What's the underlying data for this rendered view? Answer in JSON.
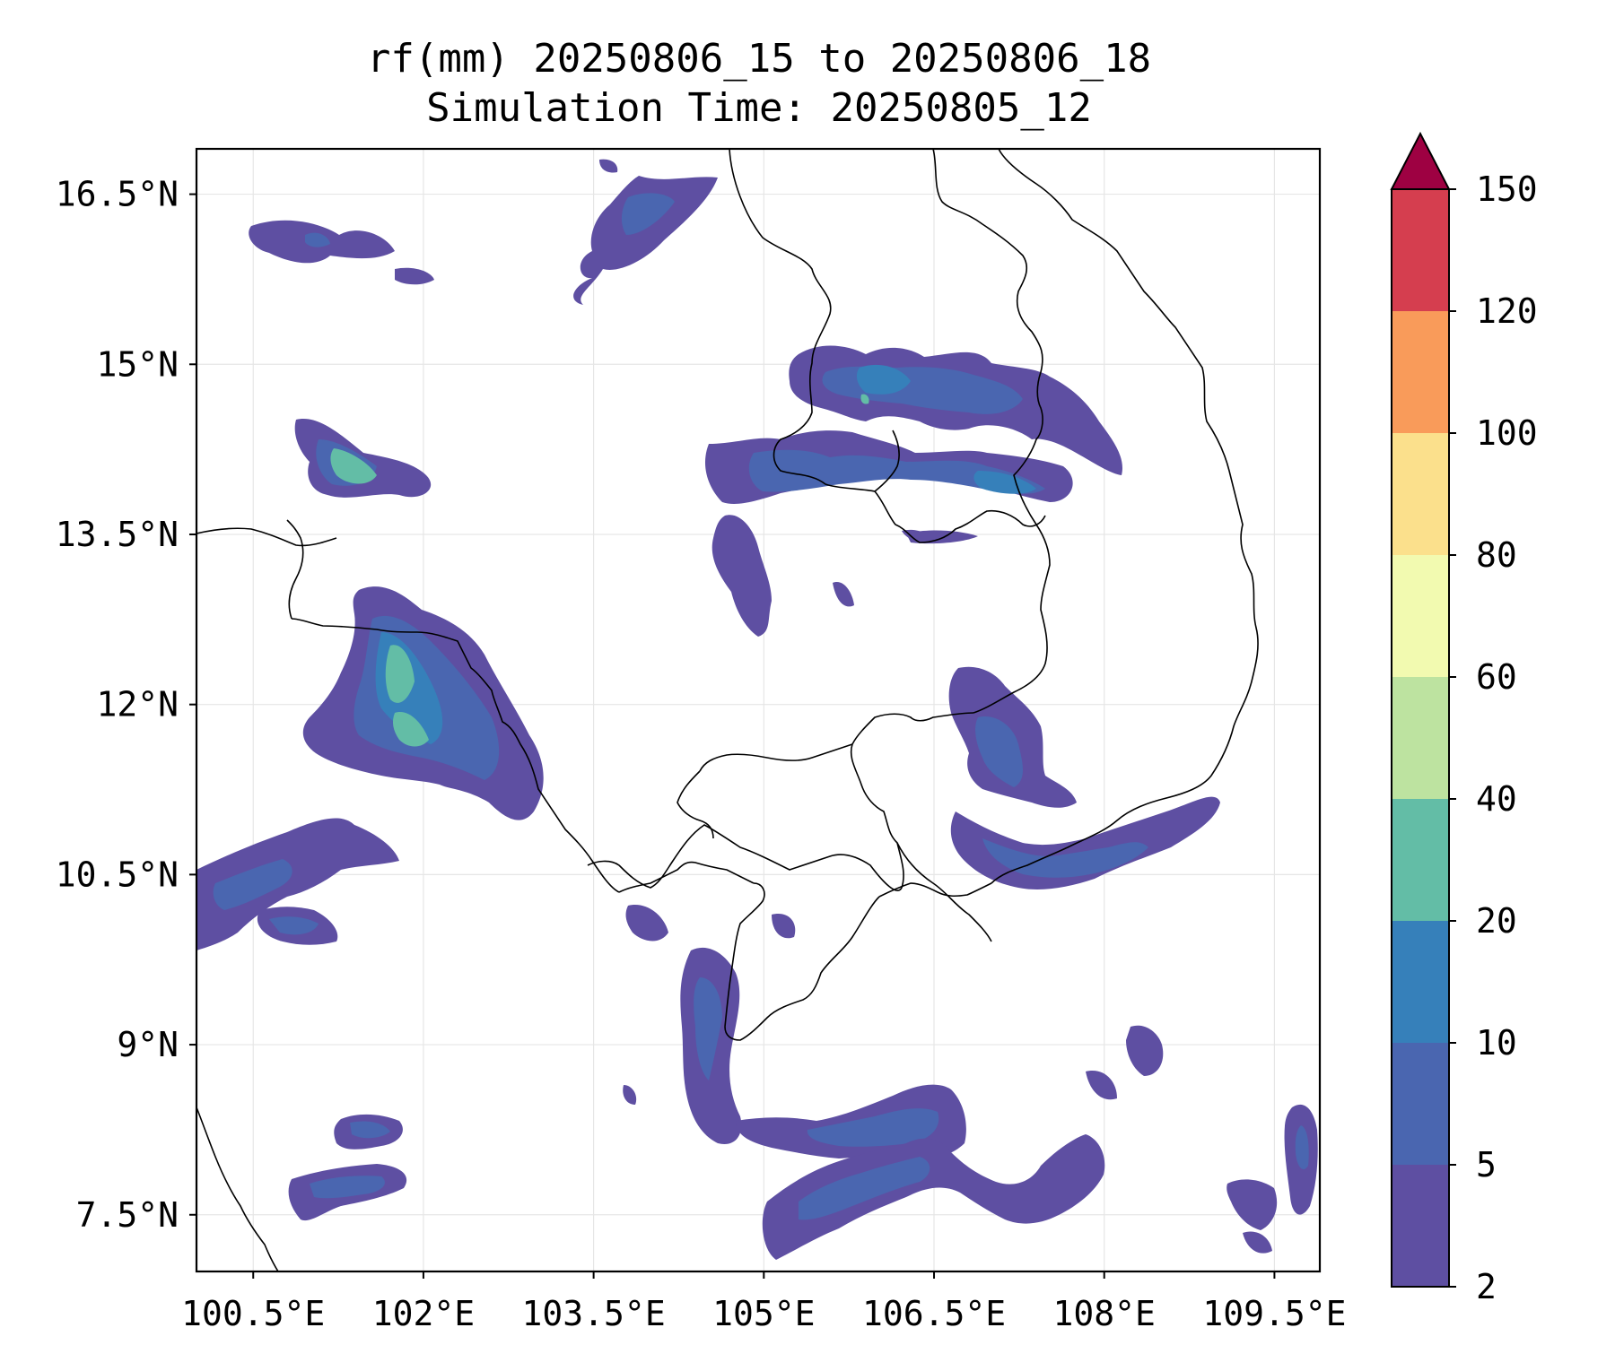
{
  "title": {
    "line1": "rf(mm) 20250806_15 to 20250806_18",
    "line2": "Simulation Time: 20250805_12"
  },
  "map": {
    "extent": {
      "lon_min": 100.0,
      "lon_max": 109.9,
      "lat_min": 7.0,
      "lat_max": 16.9
    },
    "lon_ticks": [
      {
        "value": 100.5,
        "label": "100.5°E"
      },
      {
        "value": 102.0,
        "label": "102°E"
      },
      {
        "value": 103.5,
        "label": "103.5°E"
      },
      {
        "value": 105.0,
        "label": "105°E"
      },
      {
        "value": 106.5,
        "label": "106.5°E"
      },
      {
        "value": 108.0,
        "label": "108°E"
      },
      {
        "value": 109.5,
        "label": "109.5°E"
      }
    ],
    "lat_ticks": [
      {
        "value": 16.5,
        "label": "16.5°N"
      },
      {
        "value": 15.0,
        "label": "15°N"
      },
      {
        "value": 13.5,
        "label": "13.5°N"
      },
      {
        "value": 12.0,
        "label": "12°N"
      },
      {
        "value": 10.5,
        "label": "10.5°N"
      },
      {
        "value": 9.0,
        "label": "9°N"
      },
      {
        "value": 7.5,
        "label": "7.5°N"
      }
    ],
    "grid": true
  },
  "colorbar": {
    "levels": [
      {
        "label": "2",
        "color": "#5e4fa2"
      },
      {
        "label": "5",
        "color": "#4a66b0"
      },
      {
        "label": "10",
        "color": "#3680ba"
      },
      {
        "label": "20",
        "color": "#63bda6"
      },
      {
        "label": "40",
        "color": "#bde3a0"
      },
      {
        "label": "60",
        "color": "#f2fab0"
      },
      {
        "label": "80",
        "color": "#fbe08c"
      },
      {
        "label": "100",
        "color": "#f99b5a"
      },
      {
        "label": "120",
        "color": "#d53e4f"
      },
      {
        "label": "150",
        "color": "#9e0142"
      }
    ],
    "extend": "max"
  },
  "chart_data": {
    "type": "heatmap",
    "variable": "rf(mm)",
    "title": "rf(mm) 20250806_15 to 20250806_18",
    "subtitle": "Simulation Time: 20250805_12",
    "xlim": [
      100.0,
      109.9
    ],
    "ylim": [
      7.0,
      16.9
    ],
    "colorbar_bounds": [
      2,
      5,
      10,
      20,
      40,
      60,
      80,
      100,
      120,
      150
    ],
    "rain_areas": [
      {
        "lon": [
          100.5,
          101.8,
          101.8,
          100.5
        ],
        "lat": [
          16.6,
          16.6,
          15.8,
          15.8
        ],
        "level": "5"
      },
      {
        "lon": [
          103.5,
          105.0,
          104.8,
          103.4
        ],
        "lat": [
          16.7,
          16.7,
          15.6,
          15.6
        ],
        "level": "10"
      },
      {
        "lon": [
          101.0,
          102.5,
          102.4,
          101.0
        ],
        "lat": [
          14.7,
          14.2,
          13.9,
          14.1
        ],
        "level": "20"
      },
      {
        "lon": [
          101.2,
          103.3,
          103.0,
          101.0
        ],
        "lat": [
          13.2,
          11.6,
          11.2,
          12.0
        ],
        "level": "40"
      },
      {
        "lon": [
          105.3,
          108.3,
          108.2,
          105.4
        ],
        "lat": [
          15.2,
          15.0,
          13.8,
          14.2
        ],
        "level": "20"
      },
      {
        "lon": [
          104.4,
          105.4,
          105.3,
          104.6
        ],
        "lat": [
          14.4,
          14.2,
          13.7,
          13.8
        ],
        "level": "10"
      },
      {
        "lon": [
          107.0,
          109.0,
          108.7,
          107.0
        ],
        "lat": [
          12.5,
          10.9,
          10.2,
          10.3
        ],
        "level": "10"
      },
      {
        "lon": [
          100.0,
          101.8,
          101.6,
          100.0
        ],
        "lat": [
          11.3,
          11.3,
          10.2,
          10.2
        ],
        "level": "5"
      },
      {
        "lon": [
          104.5,
          107.7,
          107.5,
          104.6
        ],
        "lat": [
          10.4,
          9.6,
          7.3,
          7.3
        ],
        "level": "10"
      },
      {
        "lon": [
          100.8,
          101.8,
          101.8,
          100.8
        ],
        "lat": [
          8.4,
          8.0,
          7.6,
          7.6
        ],
        "level": "10"
      },
      {
        "lon": [
          109.0,
          109.9,
          109.9,
          109.0
        ],
        "lat": [
          8.4,
          8.4,
          7.0,
          7.0
        ],
        "level": "5"
      }
    ]
  }
}
